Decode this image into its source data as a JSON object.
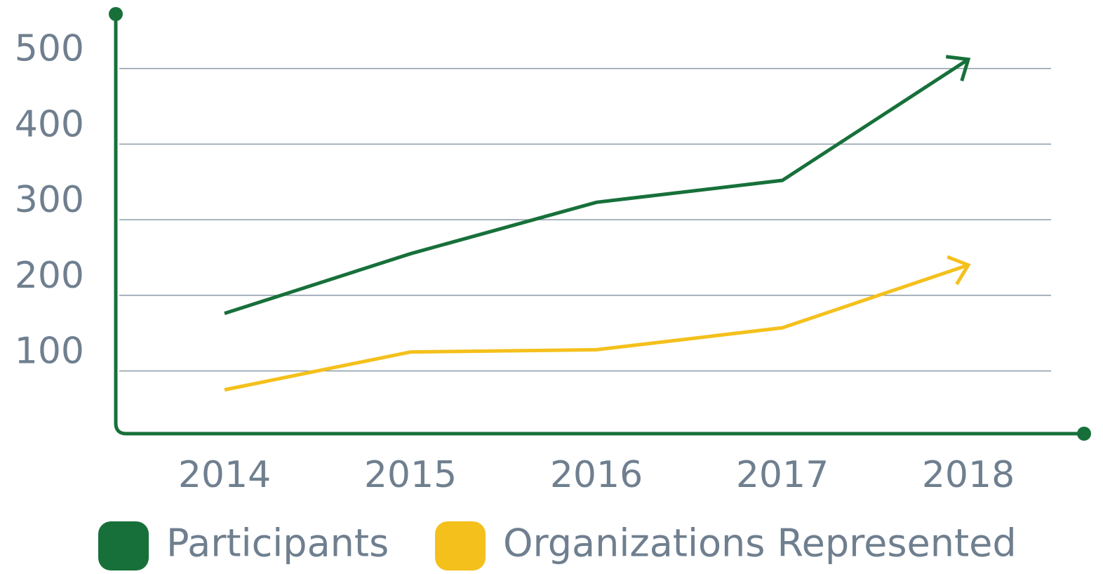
{
  "chart_data": {
    "type": "line",
    "categories": [
      "2014",
      "2015",
      "2016",
      "2017",
      "2018"
    ],
    "series": [
      {
        "name": "Participants",
        "color": "#17703a",
        "values": [
          176,
          255,
          323,
          352,
          512
        ]
      },
      {
        "name": "Organizations Represented",
        "color": "#f4c01c",
        "values": [
          75,
          125,
          128,
          157,
          240
        ]
      }
    ],
    "ylim": [
      17,
      572
    ],
    "yticks": [
      100,
      200,
      300,
      400,
      500
    ],
    "grid": true
  }
}
